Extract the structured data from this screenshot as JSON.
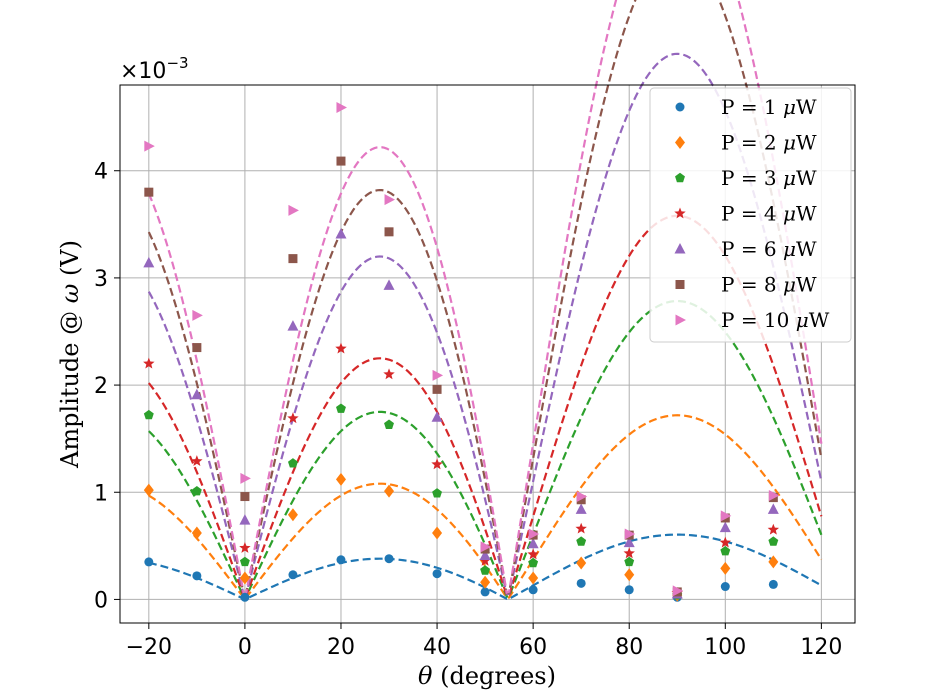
{
  "chart_data": {
    "type": "scatter",
    "xlabel_symbol": "θ",
    "xlabel_text": " (degrees)",
    "ylabel": "Amplitude @ ",
    "ylabel_symbol": "ω",
    "ylabel_unit": " (V)",
    "y_scale_label": "×10",
    "y_scale_exponent": "−3",
    "xlim": [
      -26,
      127
    ],
    "ylim": [
      -0.22,
      4.8
    ],
    "xticks": [
      -20,
      0,
      20,
      40,
      60,
      80,
      100,
      120
    ],
    "xtick_labels": [
      "−20",
      "0",
      "20",
      "40",
      "60",
      "80",
      "100",
      "120"
    ],
    "yticks": [
      0,
      1,
      2,
      3,
      4
    ],
    "ytick_labels": [
      "0",
      "1",
      "2",
      "3",
      "4"
    ],
    "grid": true,
    "legend_position": "top-right",
    "x": [
      -20,
      -10,
      0,
      10,
      20,
      30,
      40,
      50,
      60,
      70,
      80,
      90,
      100,
      110
    ],
    "series": [
      {
        "name": "P = 1 ",
        "mu": "μ",
        "unit": "W",
        "color": "#1f77b4",
        "marker": "circle",
        "fit_amplitude": 0.38,
        "values": [
          0.35,
          0.22,
          0.02,
          0.23,
          0.37,
          0.38,
          0.24,
          0.07,
          0.09,
          0.15,
          0.09,
          0.02,
          0.12,
          0.14
        ]
      },
      {
        "name": "P = 2 ",
        "mu": "μ",
        "unit": "W",
        "color": "#ff7f0e",
        "marker": "diamond",
        "fit_amplitude": 1.08,
        "values": [
          1.02,
          0.62,
          0.2,
          0.79,
          1.12,
          1.01,
          0.62,
          0.16,
          0.2,
          0.34,
          0.23,
          0.04,
          0.29,
          0.35
        ]
      },
      {
        "name": "P = 3 ",
        "mu": "μ",
        "unit": "W",
        "color": "#2ca02c",
        "marker": "pentagon",
        "fit_amplitude": 1.75,
        "values": [
          1.72,
          1.01,
          0.35,
          1.27,
          1.78,
          1.63,
          0.99,
          0.27,
          0.34,
          0.54,
          0.35,
          0.04,
          0.45,
          0.54
        ]
      },
      {
        "name": "P = 4 ",
        "mu": "μ",
        "unit": "W",
        "color": "#d62728",
        "marker": "star",
        "fit_amplitude": 2.25,
        "values": [
          2.2,
          1.29,
          0.48,
          1.69,
          2.34,
          2.1,
          1.26,
          0.36,
          0.42,
          0.66,
          0.43,
          0.06,
          0.53,
          0.65
        ]
      },
      {
        "name": "P = 6 ",
        "mu": "μ",
        "unit": "W",
        "color": "#9467bd",
        "marker": "triangle-up",
        "fit_amplitude": 3.2,
        "values": [
          3.14,
          1.91,
          0.74,
          2.55,
          3.41,
          2.93,
          1.7,
          0.41,
          0.52,
          0.84,
          0.53,
          0.05,
          0.67,
          0.84
        ]
      },
      {
        "name": "P = 8 ",
        "mu": "μ",
        "unit": "W",
        "color": "#8c564b",
        "marker": "square",
        "fit_amplitude": 3.82,
        "values": [
          3.8,
          2.35,
          0.96,
          3.18,
          4.09,
          3.43,
          1.96,
          0.47,
          0.6,
          0.93,
          0.6,
          0.07,
          0.76,
          0.95
        ]
      },
      {
        "name": "P = 10 ",
        "mu": "μ",
        "unit": "W",
        "color": "#e377c2",
        "marker": "triangle-right",
        "fit_amplitude": 4.22,
        "values": [
          4.23,
          2.65,
          1.13,
          3.63,
          4.59,
          3.73,
          2.09,
          0.49,
          0.61,
          0.96,
          0.61,
          0.08,
          0.78,
          0.97
        ]
      }
    ]
  }
}
